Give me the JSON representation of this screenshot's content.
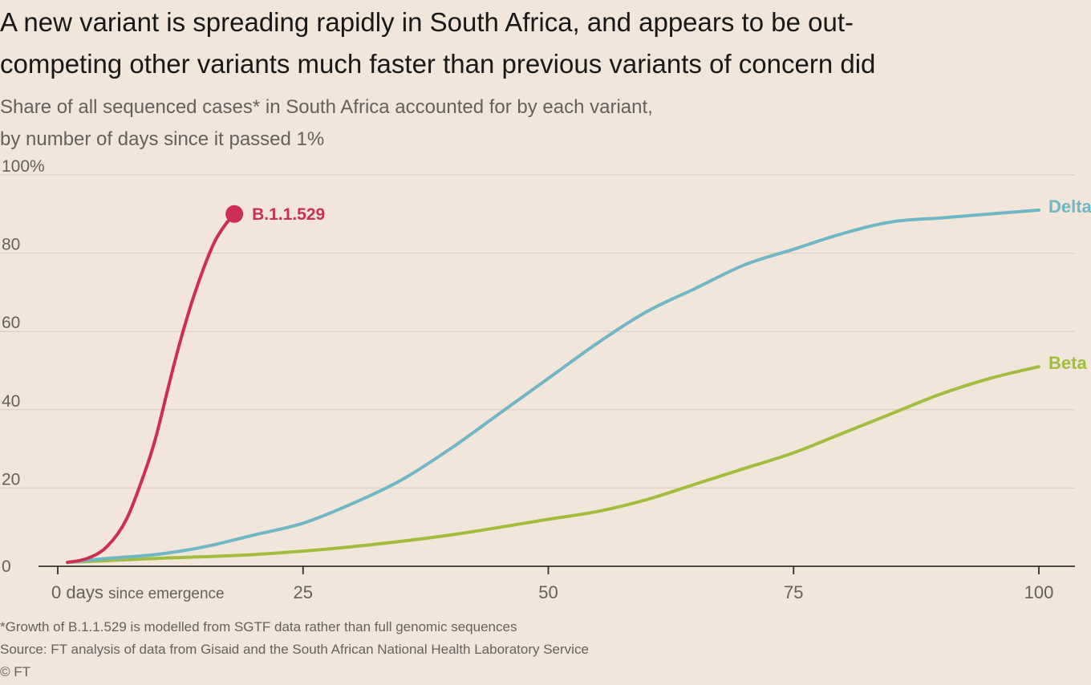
{
  "title": "A new variant is spreading rapidly in South Africa, and appears to be out-\ncompeting other variants much faster than previous variants of concern did",
  "subtitle": "Share of all sequenced cases* in South Africa accounted for by each variant,\nby number of days since it passed 1%",
  "footnote": "*Growth of B.1.1.529 is modelled from SGTF data rather than full genomic sequences",
  "source": "Source: FT analysis of data from Gisaid and the South African National Health Laboratory Service",
  "credit": "© FT",
  "colors": {
    "background": "#f2e6da",
    "grid": "#e0d3c6",
    "axis": "#33302e",
    "b11529": "#cc2e54",
    "delta": "#6fb7c6",
    "beta": "#a2bc3e"
  },
  "chart_data": {
    "type": "line",
    "x_tick_labels": [
      "0 days since emergence",
      "25",
      "50",
      "75",
      "100"
    ],
    "x_ticks": [
      0,
      25,
      50,
      75,
      100
    ],
    "xlim": [
      0,
      100
    ],
    "y_tick_labels": [
      "100%",
      "80",
      "60",
      "40",
      "20",
      "0"
    ],
    "y_ticks": [
      100,
      80,
      60,
      40,
      20,
      0
    ],
    "ylim": [
      0,
      100
    ],
    "grid": true,
    "series": [
      {
        "name": "B.1.1.529",
        "color": "#cc2e54",
        "end_marker": true,
        "x": [
          1,
          3,
          5,
          7,
          9,
          10,
          11,
          12,
          13,
          14,
          15,
          16,
          17,
          18
        ],
        "y": [
          1,
          2,
          5,
          12,
          25,
          33,
          43,
          53,
          62,
          70,
          77,
          83,
          87,
          90
        ]
      },
      {
        "name": "Delta",
        "color": "#6fb7c6",
        "end_marker": false,
        "x": [
          1,
          5,
          10,
          15,
          20,
          25,
          30,
          35,
          40,
          45,
          50,
          55,
          60,
          65,
          70,
          75,
          80,
          85,
          90,
          95,
          100
        ],
        "y": [
          1,
          2,
          3,
          5,
          8,
          11,
          16,
          22,
          30,
          39,
          48,
          57,
          65,
          71,
          77,
          81,
          85,
          88,
          89,
          90,
          91
        ]
      },
      {
        "name": "Beta",
        "color": "#a2bc3e",
        "end_marker": false,
        "x": [
          1,
          10,
          20,
          30,
          40,
          50,
          55,
          60,
          65,
          70,
          75,
          80,
          85,
          90,
          95,
          100
        ],
        "y": [
          1,
          2,
          3,
          5,
          8,
          12,
          14,
          17,
          21,
          25,
          29,
          34,
          39,
          44,
          48,
          51
        ]
      }
    ]
  }
}
